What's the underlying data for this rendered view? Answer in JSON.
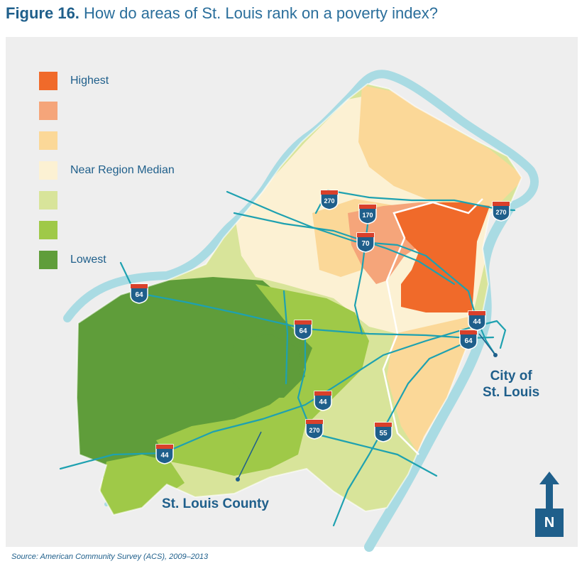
{
  "title": {
    "figure_label": "Figure 16.",
    "text": "How do areas of St. Louis rank on a poverty index?"
  },
  "legend": {
    "items": [
      {
        "label": "Highest",
        "color": "#f06a2a"
      },
      {
        "label": "",
        "color": "#f5a57a"
      },
      {
        "label": "",
        "color": "#fbd898"
      },
      {
        "label": "Near Region Median",
        "color": "#fcf1d3"
      },
      {
        "label": "",
        "color": "#d8e49a"
      },
      {
        "label": "",
        "color": "#9fc948"
      },
      {
        "label": "Lowest",
        "color": "#5f9d3a"
      }
    ]
  },
  "map_labels": {
    "county": "St. Louis County",
    "city_line1": "City of",
    "city_line2": "St. Louis"
  },
  "highway_shields": [
    {
      "id": "i64-west",
      "number": "64"
    },
    {
      "id": "i64-central",
      "number": "64"
    },
    {
      "id": "i64-east",
      "number": "64"
    },
    {
      "id": "i44-west",
      "number": "44"
    },
    {
      "id": "i44-central",
      "number": "44"
    },
    {
      "id": "i44-east",
      "number": "44"
    },
    {
      "id": "i270-north",
      "number": "270"
    },
    {
      "id": "i270-northeast",
      "number": "270"
    },
    {
      "id": "i270-south",
      "number": "270"
    },
    {
      "id": "i170",
      "number": "170"
    },
    {
      "id": "i70",
      "number": "70"
    },
    {
      "id": "i55",
      "number": "55"
    }
  ],
  "north_arrow": {
    "label": "N"
  },
  "source": "Source: American Community Survey (ACS), 2009–2013",
  "colors": {
    "river": "#a9dbe3",
    "highway": "#1ea1b0",
    "shield_blue": "#1f5f8b",
    "shield_red": "#d9402b",
    "background": "#eeeeee"
  }
}
